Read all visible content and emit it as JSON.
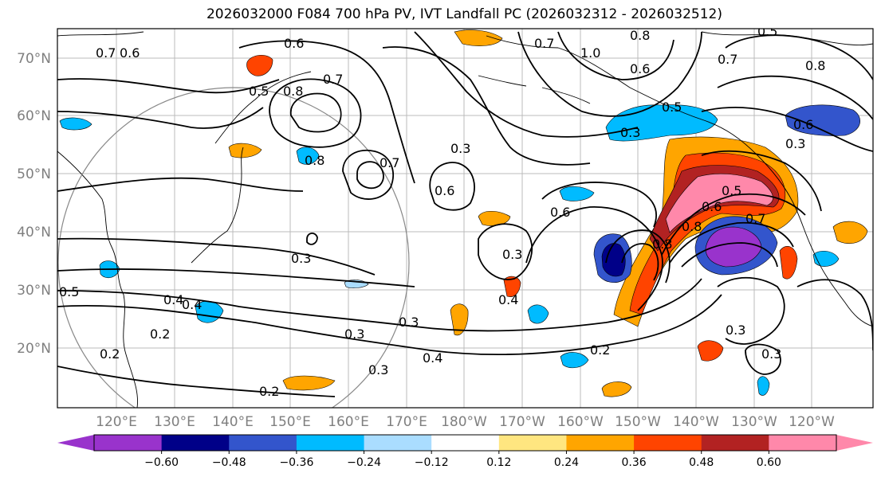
{
  "title": "2026032000 F084 700 hPa PV, IVT Landfall PC (2026032312 - 2026032512)",
  "lat_ticks": [
    "70°N",
    "60°N",
    "50°N",
    "40°N",
    "30°N",
    "20°N"
  ],
  "lon_ticks": [
    "120°E",
    "130°E",
    "140°E",
    "150°E",
    "160°E",
    "170°E",
    "180°W",
    "170°W",
    "160°W",
    "150°W",
    "140°W",
    "130°W",
    "120°W"
  ],
  "contour_labels": [
    "0.6",
    "0.7",
    "0.6",
    "0.5",
    "0.8",
    "0.7",
    "0.8",
    "0.7",
    "0.8",
    "0.7",
    "1.0",
    "0.6",
    "0.7",
    "0.8",
    "0.5",
    "0.5",
    "0.6",
    "0.3",
    "0.3",
    "0.3",
    "0.6",
    "0.6",
    "0.3",
    "0.3",
    "0.4",
    "0.2",
    "0.4",
    "0.3",
    "0.3",
    "0.3",
    "0.4",
    "0.2",
    "0.2",
    "0.3",
    "0.3",
    "0.2",
    "0.5",
    "0.4",
    "0.8",
    "0.8",
    "0.5",
    "0.6",
    "0.7"
  ],
  "colorbar": {
    "colors": [
      "#9933cc",
      "#000088",
      "#3355cc",
      "#00bbff",
      "#aaddff",
      "#ffffff",
      "#ffe680",
      "#ffa500",
      "#ff4400",
      "#b22222",
      "#ff88aa"
    ],
    "under_color": "#9933cc",
    "over_color": "#ff88aa",
    "tick_labels": [
      "−0.60",
      "−0.48",
      "−0.36",
      "−0.24",
      "−0.12",
      "0.12",
      "0.24",
      "0.36",
      "0.48",
      "0.60"
    ]
  }
}
